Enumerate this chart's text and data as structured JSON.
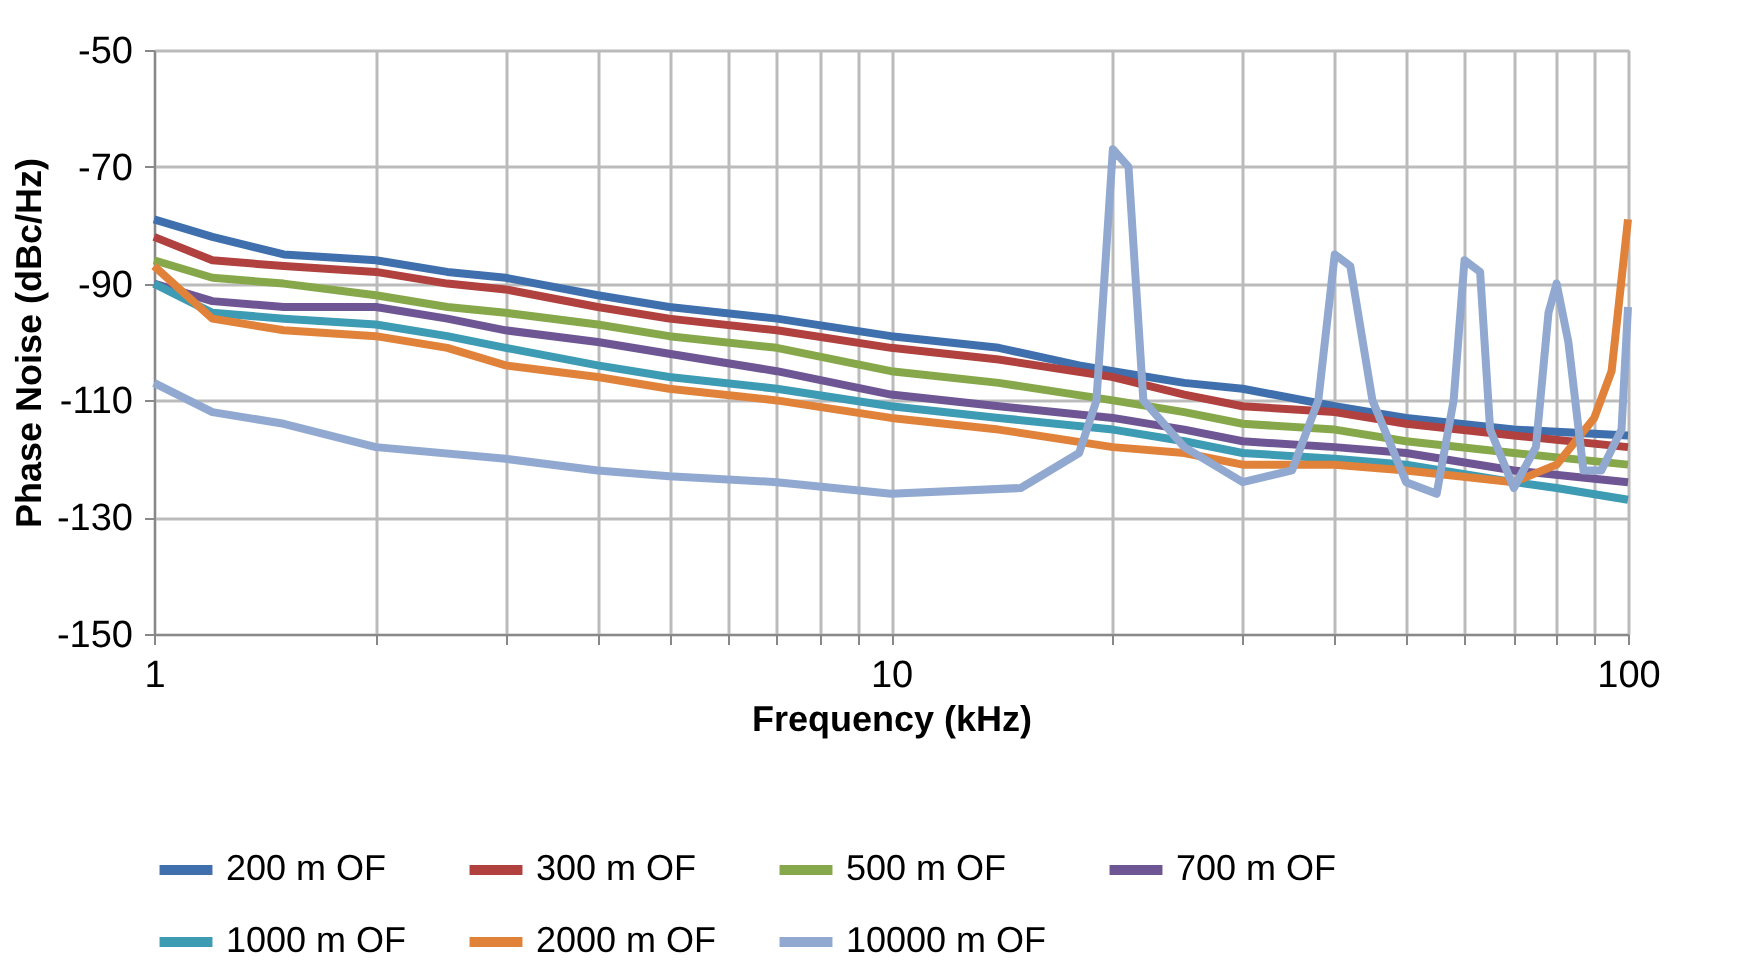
{
  "chart_data": {
    "type": "line",
    "xlabel": "Frequency (kHz)",
    "ylabel": "Phase Noise (dBc/Hz)",
    "log": "x",
    "grid": true,
    "legend": "bottom",
    "line_style": "solid",
    "marker": "none",
    "xlim": [
      1,
      100
    ],
    "ylim": [
      -150,
      -50
    ],
    "xticks": [
      1,
      {
        "value": 2,
        "label": null
      },
      {
        "value": 3,
        "label": null
      },
      {
        "value": 4,
        "label": null
      },
      {
        "value": 5,
        "label": null
      },
      {
        "value": 6,
        "label": null
      },
      {
        "value": 7,
        "label": null
      },
      {
        "value": 8,
        "label": null
      },
      {
        "value": 9,
        "label": null
      },
      10,
      {
        "value": 20,
        "label": null
      },
      {
        "value": 30,
        "label": null
      },
      {
        "value": 40,
        "label": null
      },
      {
        "value": 50,
        "label": null
      },
      {
        "value": 60,
        "label": null
      },
      {
        "value": 70,
        "label": null
      },
      {
        "value": 80,
        "label": null
      },
      {
        "value": 90,
        "label": null
      },
      100
    ],
    "yticks": [
      -150,
      -130,
      -110,
      -90,
      -70,
      -50
    ],
    "series": [
      {
        "name": "200 m OF",
        "color": "#3f6fad",
        "x": [
          1,
          1.2,
          1.5,
          2,
          2.5,
          3,
          4,
          5,
          7,
          10,
          14,
          18,
          20,
          25,
          30,
          40,
          50,
          70,
          100
        ],
        "values": [
          -79,
          -82,
          -85,
          -86,
          -88,
          -89,
          -92,
          -94,
          -96,
          -99,
          -101,
          -104,
          -105,
          -107,
          -108,
          -111,
          -113,
          -115,
          -116
        ]
      },
      {
        "name": "300 m OF",
        "color": "#b0413e",
        "x": [
          1,
          1.2,
          1.5,
          2,
          2.5,
          3,
          4,
          5,
          7,
          10,
          14,
          20,
          25,
          30,
          40,
          50,
          70,
          100
        ],
        "values": [
          -82,
          -86,
          -87,
          -88,
          -90,
          -91,
          -94,
          -96,
          -98,
          -101,
          -103,
          -106,
          -109,
          -111,
          -112,
          -114,
          -116,
          -118
        ]
      },
      {
        "name": "500 m OF",
        "color": "#87a84a",
        "x": [
          1,
          1.2,
          1.5,
          2,
          2.5,
          3,
          4,
          5,
          7,
          10,
          14,
          20,
          25,
          30,
          40,
          50,
          70,
          100
        ],
        "values": [
          -86,
          -89,
          -90,
          -92,
          -94,
          -95,
          -97,
          -99,
          -101,
          -105,
          -107,
          -110,
          -112,
          -114,
          -115,
          -117,
          -119,
          -121
        ]
      },
      {
        "name": "700 m OF",
        "color": "#6e5593",
        "x": [
          1,
          1.2,
          1.5,
          2,
          2.5,
          3,
          4,
          5,
          7,
          10,
          14,
          20,
          25,
          30,
          40,
          50,
          70,
          100
        ],
        "values": [
          -90,
          -93,
          -94,
          -94,
          -96,
          -98,
          -100,
          -102,
          -105,
          -109,
          -111,
          -113,
          -115,
          -117,
          -118,
          -119,
          -122,
          -124
        ]
      },
      {
        "name": "1000 m OF",
        "color": "#3d9bb3",
        "x": [
          1,
          1.2,
          1.5,
          2,
          2.5,
          3,
          4,
          5,
          7,
          10,
          14,
          20,
          25,
          30,
          40,
          50,
          70,
          80,
          100
        ],
        "values": [
          -90,
          -95,
          -96,
          -97,
          -99,
          -101,
          -104,
          -106,
          -108,
          -111,
          -113,
          -115,
          -117,
          -119,
          -120,
          -121,
          -124,
          -125,
          -127
        ]
      },
      {
        "name": "2000 m OF",
        "color": "#e1823a",
        "x": [
          1,
          1.2,
          1.5,
          2,
          2.5,
          3,
          4,
          5,
          7,
          10,
          14,
          20,
          25,
          30,
          40,
          50,
          70,
          80,
          90,
          95,
          100
        ],
        "values": [
          -87,
          -96,
          -98,
          -99,
          -101,
          -104,
          -106,
          -108,
          -110,
          -113,
          -115,
          -118,
          -119,
          -121,
          -121,
          -122,
          -124,
          -121,
          -113,
          -105,
          -79
        ]
      },
      {
        "name": "10000 m OF",
        "color": "#91a9d0",
        "x": [
          1,
          1.2,
          1.5,
          2,
          3,
          4,
          5,
          7,
          10,
          15,
          18,
          19,
          20,
          21,
          22,
          25,
          30,
          35,
          38,
          40,
          42,
          45,
          50,
          55,
          58,
          60,
          63,
          65,
          70,
          75,
          78,
          80,
          83,
          87,
          92,
          98,
          100
        ],
        "values": [
          -107,
          -112,
          -114,
          -118,
          -120,
          -122,
          -123,
          -124,
          -126,
          -125,
          -119,
          -110,
          -67,
          -70,
          -110,
          -118,
          -124,
          -122,
          -110,
          -85,
          -87,
          -110,
          -124,
          -126,
          -110,
          -86,
          -88,
          -115,
          -125,
          -118,
          -95,
          -90,
          -100,
          -122,
          -122,
          -115,
          -94
        ]
      }
    ]
  }
}
